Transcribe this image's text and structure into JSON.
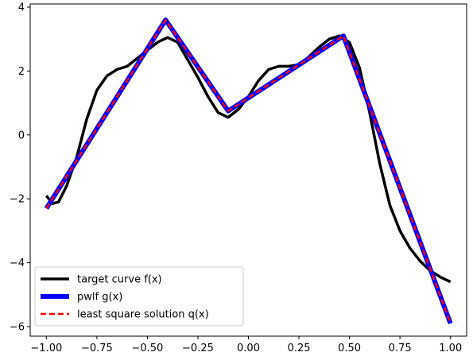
{
  "chart_data": {
    "type": "line",
    "title": "",
    "xlabel": "",
    "ylabel": "",
    "xlim": [
      -1.08,
      1.08
    ],
    "ylim": [
      -6.3,
      4.1
    ],
    "xticks": [
      -1.0,
      -0.75,
      -0.5,
      -0.25,
      0.0,
      0.25,
      0.5,
      0.75,
      1.0
    ],
    "xtick_labels": [
      "−1.00",
      "−0.75",
      "−0.50",
      "−0.25",
      "0.00",
      "0.25",
      "0.50",
      "0.75",
      "1.00"
    ],
    "yticks": [
      -6,
      -4,
      -2,
      0,
      2,
      4
    ],
    "ytick_labels": [
      "−6",
      "−4",
      "−2",
      "0",
      "2",
      "4"
    ],
    "grid": false,
    "legend_position": "lower-left",
    "series": [
      {
        "name": "target curve f(x)",
        "color": "#000000",
        "style": "solid",
        "x": [
          -1.0,
          -0.97,
          -0.94,
          -0.9,
          -0.85,
          -0.8,
          -0.75,
          -0.7,
          -0.65,
          -0.6,
          -0.55,
          -0.5,
          -0.45,
          -0.4,
          -0.35,
          -0.3,
          -0.25,
          -0.2,
          -0.15,
          -0.1,
          -0.05,
          0.0,
          0.05,
          0.1,
          0.15,
          0.2,
          0.25,
          0.3,
          0.35,
          0.4,
          0.45,
          0.5,
          0.55,
          0.6,
          0.65,
          0.7,
          0.75,
          0.8,
          0.85,
          0.9,
          0.95,
          1.0
        ],
        "y": [
          -1.9,
          -2.15,
          -2.1,
          -1.6,
          -0.7,
          0.5,
          1.4,
          1.85,
          2.05,
          2.15,
          2.4,
          2.65,
          2.9,
          3.05,
          2.9,
          2.35,
          1.8,
          1.2,
          0.7,
          0.55,
          0.8,
          1.2,
          1.7,
          2.05,
          2.15,
          2.15,
          2.2,
          2.45,
          2.75,
          3.0,
          3.1,
          2.9,
          2.1,
          0.7,
          -0.9,
          -2.2,
          -3.0,
          -3.55,
          -3.95,
          -4.25,
          -4.45,
          -4.6
        ]
      },
      {
        "name": "pwlf g(x)",
        "color": "#0000ff",
        "style": "solid",
        "x": [
          -1.0,
          -0.41,
          -0.1,
          0.47,
          1.0
        ],
        "y": [
          -2.3,
          3.6,
          0.75,
          3.1,
          -5.9
        ]
      },
      {
        "name": "least square solution q(x)",
        "color": "#ff0000",
        "style": "dashed",
        "x": [
          -1.0,
          -0.41,
          -0.1,
          0.47,
          1.0
        ],
        "y": [
          -2.3,
          3.6,
          0.75,
          3.1,
          -5.9
        ]
      }
    ]
  }
}
